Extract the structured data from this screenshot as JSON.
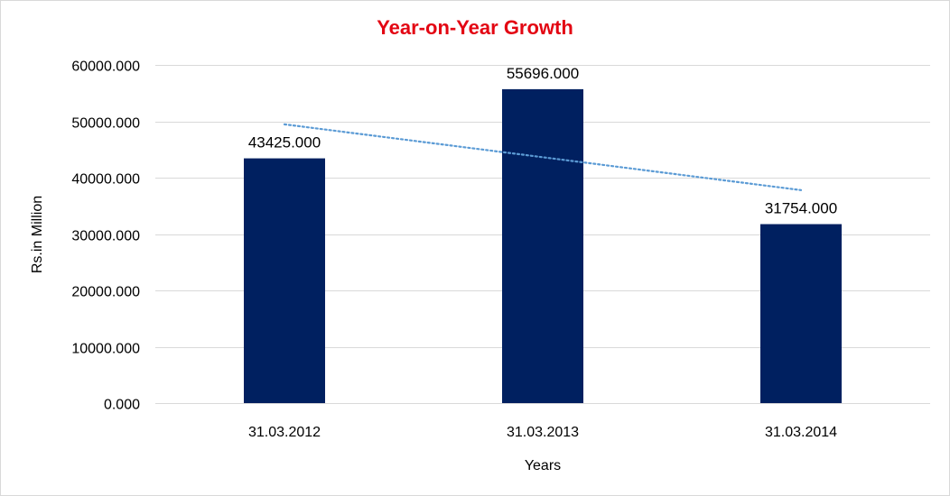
{
  "chart_data": {
    "type": "bar",
    "title": "Year-on-Year Growth",
    "xlabel": "Years",
    "ylabel": "Rs.in Million",
    "categories": [
      "31.03.2012",
      "31.03.2013",
      "31.03.2014"
    ],
    "values": [
      43425,
      55696,
      31754
    ],
    "value_labels": [
      "43425.000",
      "55696.000",
      "31754.000"
    ],
    "ylim": [
      0,
      60000
    ],
    "yticks": [
      0,
      10000,
      20000,
      30000,
      40000,
      50000,
      60000
    ],
    "ytick_labels": [
      "0.000",
      "10000.000",
      "20000.000",
      "30000.000",
      "40000.000",
      "50000.000",
      "60000.000"
    ],
    "grid": true,
    "trendline": {
      "type": "linear",
      "style": "dotted",
      "color": "#5b9bd5"
    },
    "colors": {
      "bar": "#002060",
      "title": "#e30613",
      "grid": "#d9d9d9"
    }
  }
}
